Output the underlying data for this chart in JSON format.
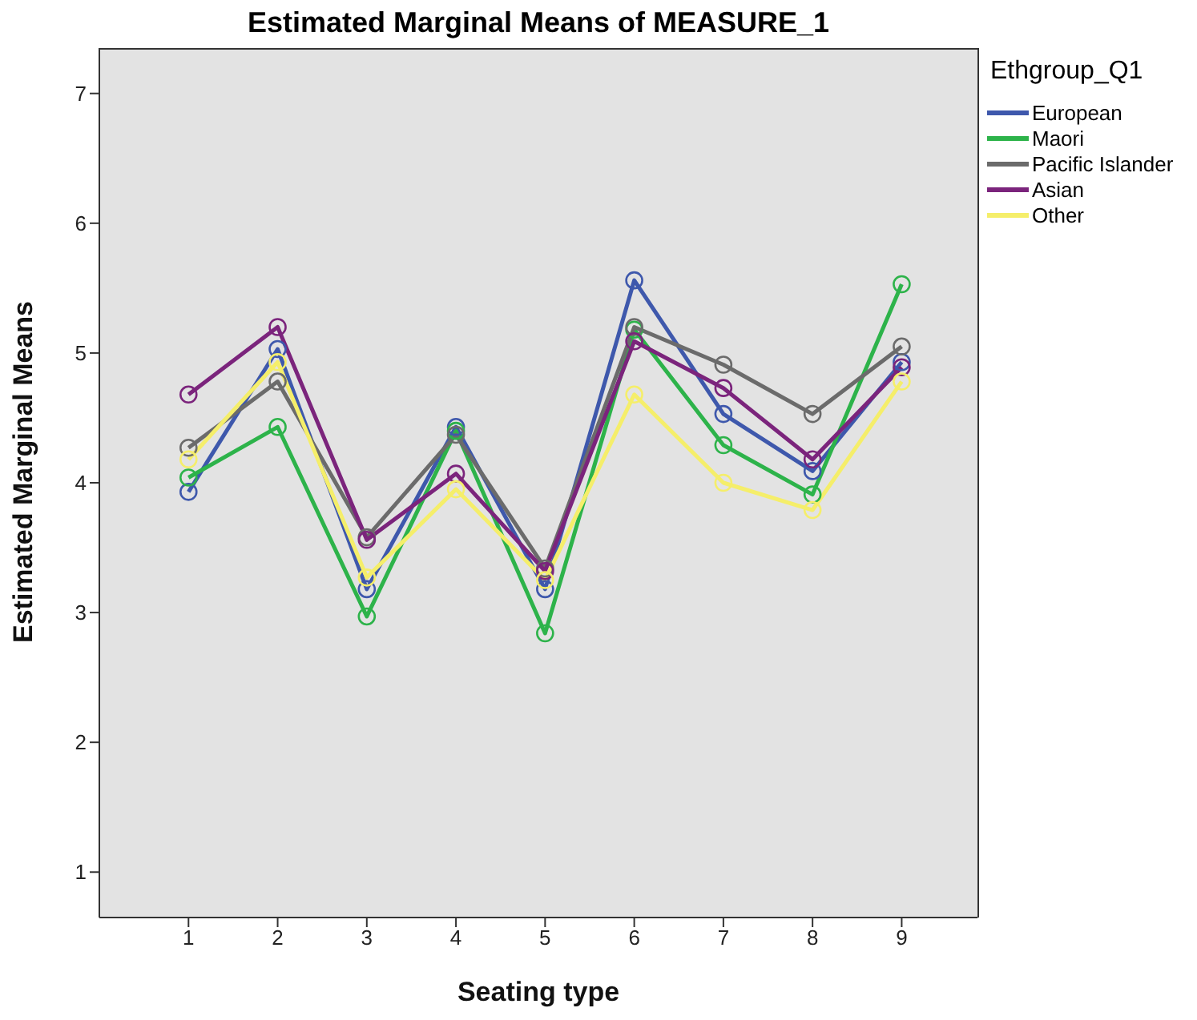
{
  "chart_data": {
    "type": "line",
    "title": "Estimated Marginal Means of MEASURE_1",
    "xlabel": "Seating type",
    "ylabel": "Estimated Marginal Means",
    "legend_title": "Ethgroup_Q1",
    "categories": [
      "1",
      "2",
      "3",
      "4",
      "5",
      "6",
      "7",
      "8",
      "9"
    ],
    "series": [
      {
        "name": "European",
        "color": "#3e58ac",
        "values": [
          3.93,
          5.03,
          3.18,
          4.43,
          3.18,
          5.56,
          4.53,
          4.09,
          4.93
        ]
      },
      {
        "name": "Maori",
        "color": "#2db34a",
        "values": [
          4.04,
          4.43,
          2.97,
          4.4,
          2.84,
          5.18,
          4.29,
          3.91,
          5.53
        ]
      },
      {
        "name": "Pacific Islander",
        "color": "#6b6b6b",
        "values": [
          4.27,
          4.78,
          3.58,
          4.37,
          3.34,
          5.2,
          4.91,
          4.53,
          5.05
        ]
      },
      {
        "name": "Asian",
        "color": "#7b247c",
        "values": [
          4.68,
          5.2,
          3.56,
          4.07,
          3.32,
          5.09,
          4.73,
          4.18,
          4.89
        ]
      },
      {
        "name": "Other",
        "color": "#f5ee6a",
        "values": [
          4.18,
          4.93,
          3.27,
          3.95,
          3.25,
          4.68,
          4.0,
          3.79,
          4.78
        ]
      }
    ],
    "ylim": [
      0.65,
      7.35
    ],
    "yticks": [
      1,
      2,
      3,
      4,
      5,
      6,
      7
    ],
    "grid": false,
    "legend": "top right",
    "marker": "circle",
    "line_style": "solid"
  }
}
